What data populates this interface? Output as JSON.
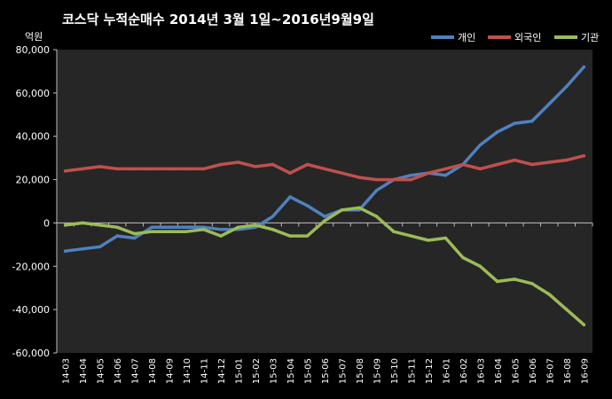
{
  "chart_data": {
    "type": "line",
    "title": "코스닥  누적순매수 2014년 3월 1일~2016년9월9일",
    "unit_label": "억원",
    "ylim": [
      -60000,
      80000
    ],
    "y_ticks": [
      -60000,
      -40000,
      -20000,
      0,
      20000,
      40000,
      60000,
      80000
    ],
    "y_tick_labels": [
      "-60,000",
      "-40,000",
      "-20,000",
      "0",
      "20,000",
      "40,000",
      "60,000",
      "80,000"
    ],
    "x": [
      "14-03",
      "14-04",
      "14-05",
      "14-06",
      "14-07",
      "14-08",
      "14-09",
      "14-10",
      "14-11",
      "14-12",
      "15-01",
      "15-02",
      "15-03",
      "15-04",
      "15-05",
      "15-06",
      "15-07",
      "15-08",
      "15-09",
      "15-10",
      "15-11",
      "15-12",
      "16-01",
      "16-02",
      "16-03",
      "16-04",
      "16-05",
      "16-06",
      "16-07",
      "16-08",
      "16-09"
    ],
    "grid": false,
    "legend_position": "top-right",
    "series": [
      {
        "name": "개인",
        "color": "#4F81BD",
        "values": [
          -13000,
          -12000,
          -11000,
          -6000,
          -7000,
          -2000,
          -2000,
          -2000,
          -2000,
          -3000,
          -3000,
          -2000,
          3000,
          12000,
          8000,
          3000,
          6000,
          6000,
          15000,
          20000,
          22000,
          23000,
          22000,
          27000,
          36000,
          42000,
          46000,
          47000,
          55000,
          63000,
          72000
        ]
      },
      {
        "name": "외국인",
        "color": "#C0504D",
        "values": [
          24000,
          25000,
          26000,
          25000,
          25000,
          25000,
          25000,
          25000,
          25000,
          27000,
          28000,
          26000,
          27000,
          23000,
          27000,
          25000,
          23000,
          21000,
          20000,
          20000,
          20000,
          23000,
          25000,
          27000,
          25000,
          27000,
          29000,
          27000,
          28000,
          29000,
          31000
        ]
      },
      {
        "name": "기관",
        "color": "#9BBB59",
        "values": [
          -1000,
          0,
          -1000,
          -2000,
          -5000,
          -4000,
          -4000,
          -4000,
          -3000,
          -6000,
          -2000,
          -1000,
          -3000,
          -6000,
          -6000,
          1000,
          6000,
          7000,
          3000,
          -4000,
          -6000,
          -8000,
          -7000,
          -16000,
          -20000,
          -27000,
          -26000,
          -28000,
          -33000,
          -40000,
          -47000
        ]
      }
    ]
  }
}
